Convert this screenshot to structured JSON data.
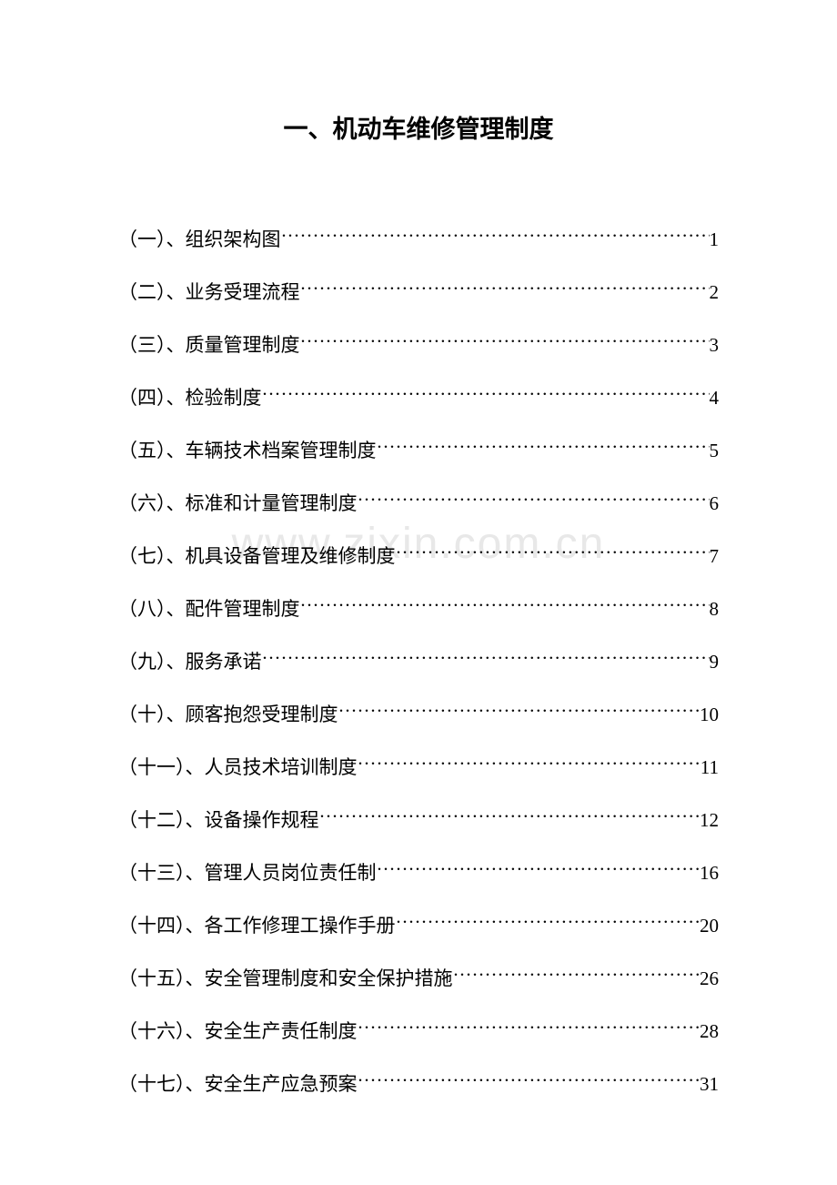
{
  "title": "一、机动车维修管理制度",
  "watermark": "www.zixin.com.cn",
  "toc": [
    {
      "label": "（一）、组织架构图",
      "page": "1"
    },
    {
      "label": "（二）、业务受理流程",
      "page": "2"
    },
    {
      "label": "（三）、质量管理制度",
      "page": "3"
    },
    {
      "label": "（四）、检验制度",
      "page": "4"
    },
    {
      "label": "（五）、车辆技术档案管理制度",
      "page": "5"
    },
    {
      "label": "（六）、标准和计量管理制度",
      "page": "6"
    },
    {
      "label": "（七）、机具设备管理及维修制度",
      "page": "7"
    },
    {
      "label": "（八）、配件管理制度",
      "page": "8"
    },
    {
      "label": "（九）、服务承诺",
      "page": "9"
    },
    {
      "label": "（十）、顾客抱怨受理制度",
      "page": "10"
    },
    {
      "label": "（十一）、人员技术培训制度",
      "page": "11"
    },
    {
      "label": "（十二）、设备操作规程",
      "page": "12"
    },
    {
      "label": "（十三）、管理人员岗位责任制",
      "page": "16"
    },
    {
      "label": "（十四）、各工作修理工操作手册",
      "page": "20"
    },
    {
      "label": "（十五）、安全管理制度和安全保护措施",
      "page": "26"
    },
    {
      "label": "（十六）、安全生产责任制度",
      "page": "28"
    },
    {
      "label": "（十七）、安全生产应急预案",
      "page": "31"
    }
  ]
}
